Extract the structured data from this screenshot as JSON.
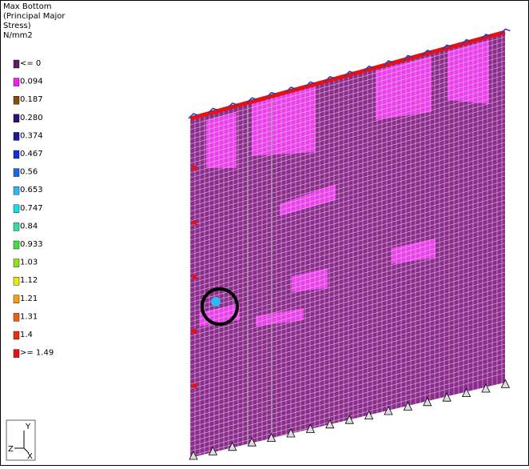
{
  "legend": {
    "title": [
      "Max Bottom",
      "(Principal Major",
      "Stress)",
      "N/mm2"
    ],
    "entries": [
      {
        "label": "<= 0",
        "color": "#5e1a66"
      },
      {
        "label": "0.094",
        "color": "#f21ef2"
      },
      {
        "label": "0.187",
        "color": "#8a4a10"
      },
      {
        "label": "0.280",
        "color": "#30106a"
      },
      {
        "label": "0.374",
        "color": "#1a1a9a"
      },
      {
        "label": "0.467",
        "color": "#1030e0"
      },
      {
        "label": "0.56",
        "color": "#1a6ae6"
      },
      {
        "label": "0.653",
        "color": "#30b8f0"
      },
      {
        "label": "0.747",
        "color": "#10e0e8"
      },
      {
        "label": "0.84",
        "color": "#30e0a0"
      },
      {
        "label": "0.933",
        "color": "#40e040"
      },
      {
        "label": "1.03",
        "color": "#90e020"
      },
      {
        "label": "1.12",
        "color": "#e8e810"
      },
      {
        "label": "1.21",
        "color": "#f0a010"
      },
      {
        "label": "1.31",
        "color": "#f06010"
      },
      {
        "label": "1.4",
        "color": "#e83010"
      },
      {
        "label": ">= 1.49",
        "color": "#e81010"
      }
    ]
  },
  "axes": {
    "y": "Y",
    "z": "Z",
    "x": "X"
  }
}
